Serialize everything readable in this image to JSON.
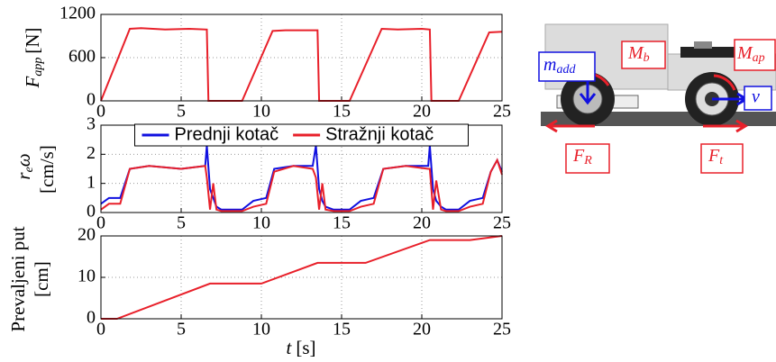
{
  "chart_data": [
    {
      "type": "line",
      "ylabel": {
        "symbol": "F",
        "subscript": "app",
        "unit": "[N]"
      },
      "x": [
        0,
        1.8,
        2.5,
        4,
        5.5,
        6.6,
        6.7,
        8.8,
        10.7,
        11.5,
        13,
        13.5,
        13.6,
        15.5,
        17.5,
        18.5,
        20,
        20.5,
        20.6,
        22.3,
        24.2,
        25
      ],
      "series": [
        {
          "color": "#e8202a",
          "values": [
            0,
            1000,
            1010,
            990,
            1000,
            990,
            0,
            0,
            970,
            980,
            980,
            980,
            0,
            0,
            1000,
            990,
            1000,
            990,
            0,
            0,
            950,
            960
          ]
        }
      ],
      "xlim": [
        0,
        25
      ],
      "ylim": [
        0,
        1200
      ],
      "xticks": [
        0,
        5,
        10,
        15,
        20,
        25
      ],
      "yticks": [
        0,
        600,
        1200
      ],
      "grid": true
    },
    {
      "type": "line",
      "ylabel": {
        "symbol": "r",
        "subscript": "e",
        "symbol2": "ω",
        "unit": "[cm/s]"
      },
      "x": [
        0,
        0.5,
        1.2,
        1.8,
        3,
        5,
        6.5,
        6.6,
        6.8,
        7.0,
        7.2,
        7.5,
        8.8,
        9.5,
        10.3,
        10.8,
        12,
        13.2,
        13.4,
        13.6,
        13.8,
        14,
        14.5,
        15.5,
        16.2,
        17,
        17.6,
        19,
        20.4,
        20.5,
        20.7,
        20.9,
        21.2,
        21.5,
        22.3,
        23,
        23.8,
        24.3,
        24.7,
        25
      ],
      "series": [
        {
          "name": "Prednji kotač",
          "color": "#1010e0",
          "values": [
            0.3,
            0.5,
            0.5,
            1.5,
            1.6,
            1.5,
            1.6,
            2.3,
            0.8,
            0.5,
            0.2,
            0.1,
            0.1,
            0.4,
            0.5,
            1.5,
            1.6,
            1.6,
            2.3,
            0.8,
            0.4,
            0.2,
            0.1,
            0.1,
            0.4,
            0.5,
            1.5,
            1.6,
            1.6,
            2.3,
            0.8,
            0.4,
            0.2,
            0.1,
            0.1,
            0.4,
            0.5,
            1.4,
            1.8,
            1.4
          ]
        },
        {
          "name": "Stražnji kotač",
          "color": "#e8202a",
          "values": [
            0.1,
            0.3,
            0.3,
            1.5,
            1.6,
            1.5,
            1.6,
            1.2,
            0.1,
            1.0,
            0.1,
            0.05,
            0.05,
            0.2,
            0.3,
            1.4,
            1.6,
            1.5,
            1.2,
            0.1,
            1.0,
            0.1,
            0.05,
            0.05,
            0.2,
            0.3,
            1.5,
            1.6,
            1.5,
            1.5,
            0.1,
            1.1,
            0.1,
            0.05,
            0.05,
            0.2,
            0.3,
            1.4,
            1.8,
            1.3
          ]
        }
      ],
      "legend": "upper center",
      "xlim": [
        0,
        25
      ],
      "ylim": [
        0,
        3
      ],
      "xticks": [
        0,
        5,
        10,
        15,
        20,
        25
      ],
      "yticks": [
        0,
        1,
        2,
        3
      ],
      "grid": true
    },
    {
      "type": "line",
      "ylabel": [
        "Prevaljeni put",
        "[cm]"
      ],
      "xlabel": {
        "symbol": "t",
        "unit": "[s]"
      },
      "x": [
        0,
        1,
        6.8,
        10,
        13.5,
        16.5,
        20.5,
        23,
        25
      ],
      "series": [
        {
          "color": "#e8202a",
          "values": [
            0,
            0,
            8.5,
            8.5,
            13.5,
            13.5,
            19,
            19,
            20
          ]
        }
      ],
      "xlim": [
        0,
        25
      ],
      "ylim": [
        0,
        20
      ],
      "xticks": [
        0,
        5,
        10,
        15,
        20,
        25
      ],
      "yticks": [
        0,
        10,
        20
      ],
      "grid": true
    }
  ],
  "diagram": {
    "labels": [
      {
        "symbol": "m",
        "subscript": "add"
      },
      {
        "symbol": "M",
        "subscript": "b"
      },
      {
        "symbol": "M",
        "subscript": "ap"
      },
      {
        "symbol": "v"
      },
      {
        "symbol": "F",
        "subscript": "R"
      },
      {
        "symbol": "F",
        "subscript": "t"
      }
    ]
  }
}
